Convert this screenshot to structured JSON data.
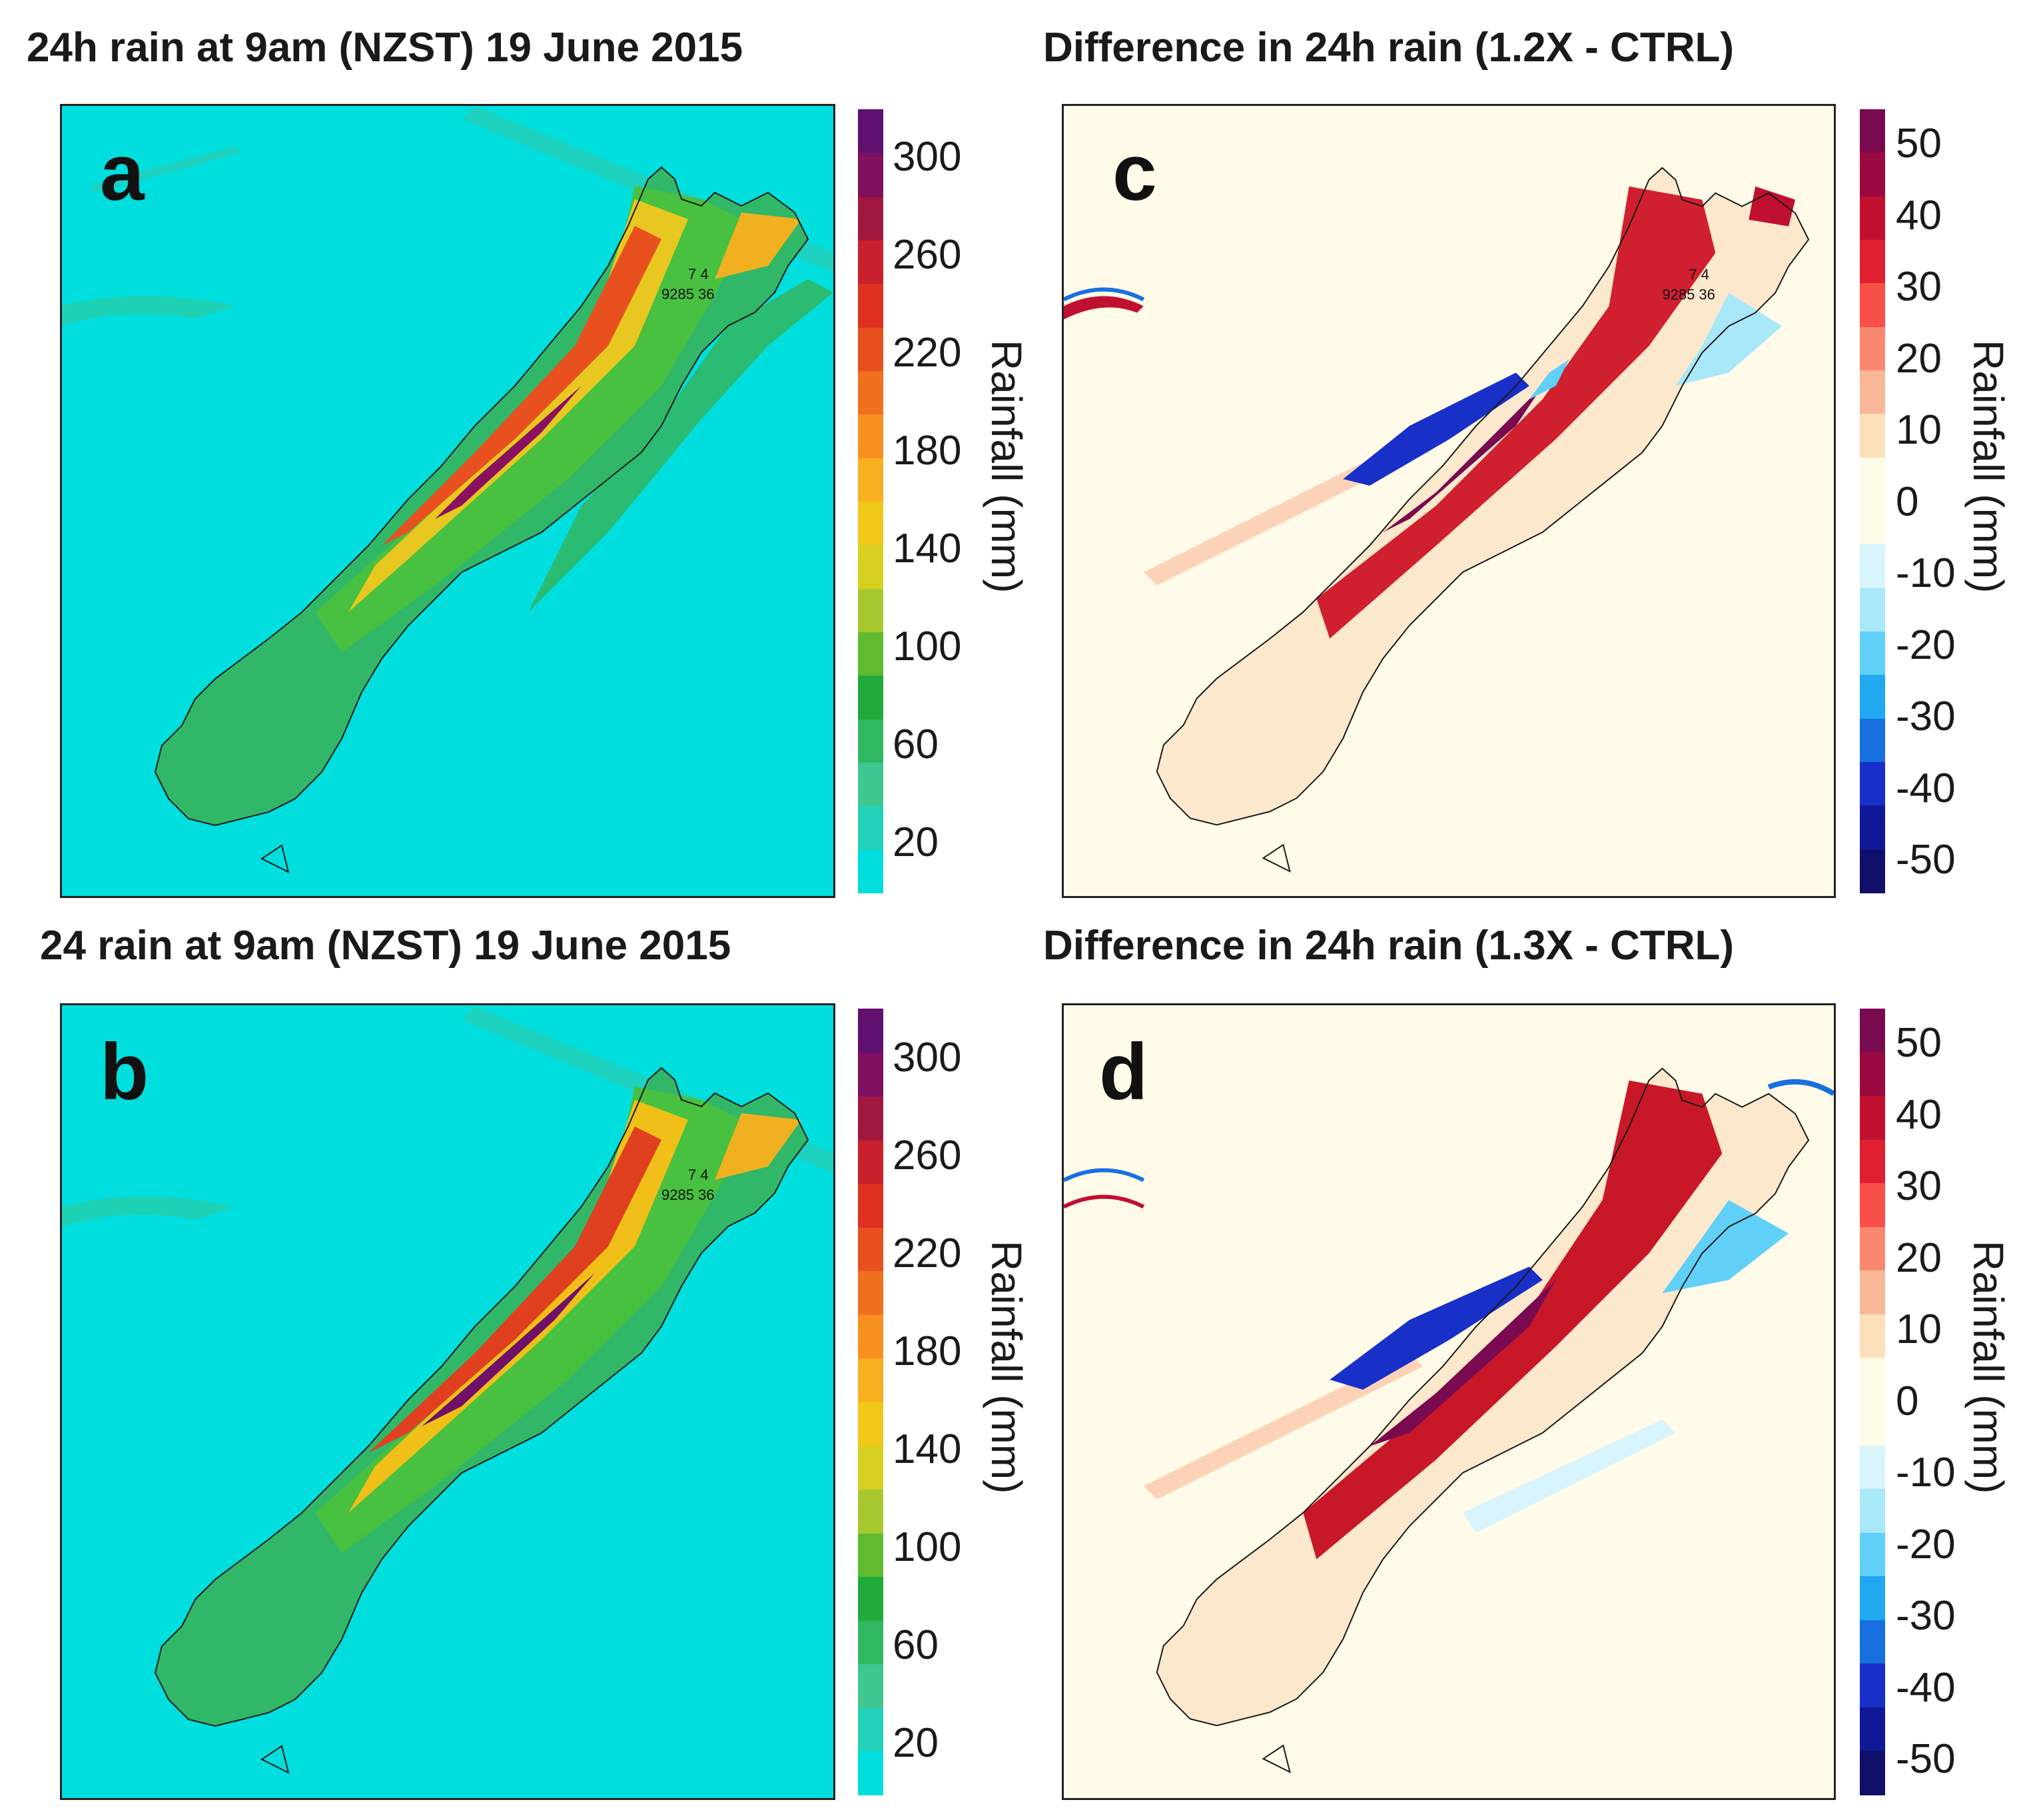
{
  "panels": {
    "a": {
      "letter": "a",
      "title": "24h rain at 9am (NZST) 19 June 2015"
    },
    "b": {
      "letter": "b",
      "title": "24 rain at 9am (NZST) 19 June 2015"
    },
    "c": {
      "letter": "c",
      "title": "Difference in 24h rain (1.2X - CTRL)"
    },
    "d": {
      "letter": "d",
      "title": "Difference in 24h rain (1.3X - CTRL)"
    }
  },
  "rain_scale": {
    "label": "Rainfall (mm)",
    "ticks": [
      "300",
      "260",
      "220",
      "180",
      "140",
      "100",
      "60",
      "20"
    ],
    "colors": [
      "#00dede",
      "#22d2b8",
      "#40c690",
      "#2fb860",
      "#1faa3a",
      "#60bb30",
      "#a8c830",
      "#d8d020",
      "#f0c818",
      "#f8b020",
      "#f89020",
      "#f07020",
      "#e85020",
      "#e03020",
      "#c8202c",
      "#a01840",
      "#801060",
      "#601070"
    ]
  },
  "diff_scale": {
    "label": "Rainfall (mm)",
    "ticks": [
      "50",
      "40",
      "30",
      "20",
      "10",
      "0",
      "-10",
      "-20",
      "-30",
      "-40",
      "-50"
    ],
    "colors": [
      "#7a0a50",
      "#9a0a40",
      "#c01030",
      "#e02030",
      "#f85048",
      "#f88870",
      "#f8b898",
      "#fce0bc",
      "#fffbe8",
      "#fffbe8",
      "#d8f4fc",
      "#a8e8f8",
      "#60d0f8",
      "#20a8f0",
      "#1870e0",
      "#1830c8",
      "#101898",
      "#10106a"
    ]
  },
  "map_labels": {
    "station_numbers": "9285  36",
    "station_top": "7  4"
  },
  "colors": {
    "ocean": "#00dede",
    "diff_background": "#fffbe8"
  }
}
